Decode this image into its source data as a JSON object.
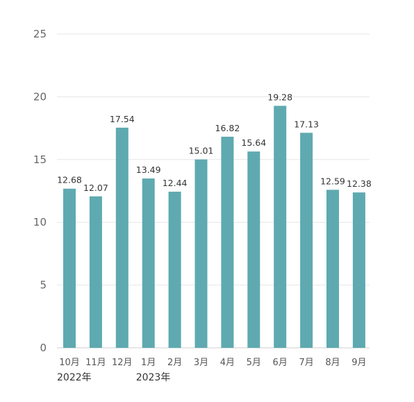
{
  "chart_data": {
    "type": "bar",
    "title": "",
    "xlabel": "",
    "ylabel": "",
    "categories": [
      "10月",
      "11月",
      "12月",
      "1月",
      "2月",
      "3月",
      "4月",
      "5月",
      "6月",
      "7月",
      "8月",
      "9月"
    ],
    "values": [
      12.68,
      12.07,
      17.54,
      13.49,
      12.44,
      15.01,
      16.82,
      15.64,
      19.28,
      17.13,
      12.59,
      12.38
    ],
    "data_labels": [
      "12.68",
      "12.07",
      "17.54",
      "13.49",
      "12.44",
      "15.01",
      "16.82",
      "15.64",
      "19.28",
      "17.13",
      "12.59",
      "12.38"
    ],
    "year_labels": [
      {
        "text": "2022年",
        "category_index": 0
      },
      {
        "text": "2023年",
        "category_index": 3
      }
    ],
    "ylim": [
      0,
      25
    ],
    "yticks": [
      "0",
      "5",
      "10",
      "15",
      "20",
      "25"
    ],
    "grid": true,
    "legend": "none",
    "colors": {
      "bar": "#5eaab0",
      "grid": "#e6e6e6",
      "axis": "#cfcfcf"
    }
  }
}
